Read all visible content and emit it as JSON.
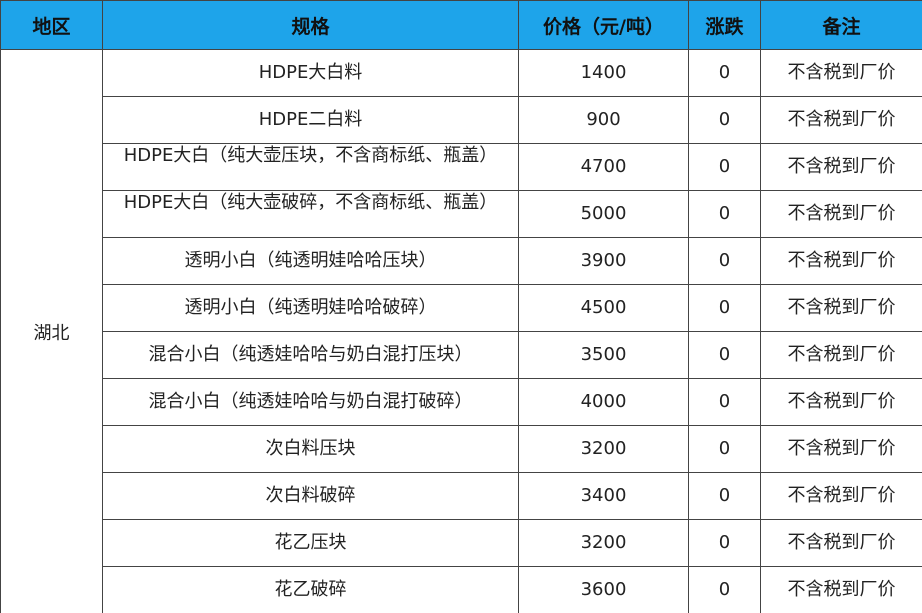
{
  "table": {
    "header": [
      "地区",
      "规格",
      "价格（元/吨）",
      "涨跌",
      "备注"
    ],
    "region": "湖北",
    "rows": [
      [
        "HDPE大白料",
        1400,
        0,
        "不含税到厂价"
      ],
      [
        "HDPE二白料",
        900,
        0,
        "不含税到厂价"
      ],
      [
        "HDPE大白（纯大壶压块，不含商标纸、瓶盖）",
        4700,
        0,
        "不含税到厂价"
      ],
      [
        "HDPE大白（纯大壶破碎，不含商标纸、瓶盖）",
        5000,
        0,
        "不含税到厂价"
      ],
      [
        "透明小白（纯透明娃哈哈压块）",
        3900,
        0,
        "不含税到厂价"
      ],
      [
        "透明小白（纯透明娃哈哈破碎）",
        4500,
        0,
        "不含税到厂价"
      ],
      [
        "混合小白（纯透娃哈哈与奶白混打压块）",
        3500,
        0,
        "不含税到厂价"
      ],
      [
        "混合小白（纯透娃哈哈与奶白混打破碎）",
        4000,
        0,
        "不含税到厂价"
      ],
      [
        "次白料压块",
        3200,
        0,
        "不含税到厂价"
      ],
      [
        "次白料破碎",
        3400,
        0,
        "不含税到厂价"
      ],
      [
        "花乙压块",
        3200,
        0,
        "不含税到厂价"
      ],
      [
        "花乙破碎",
        3600,
        0,
        "不含税到厂价"
      ]
    ]
  }
}
